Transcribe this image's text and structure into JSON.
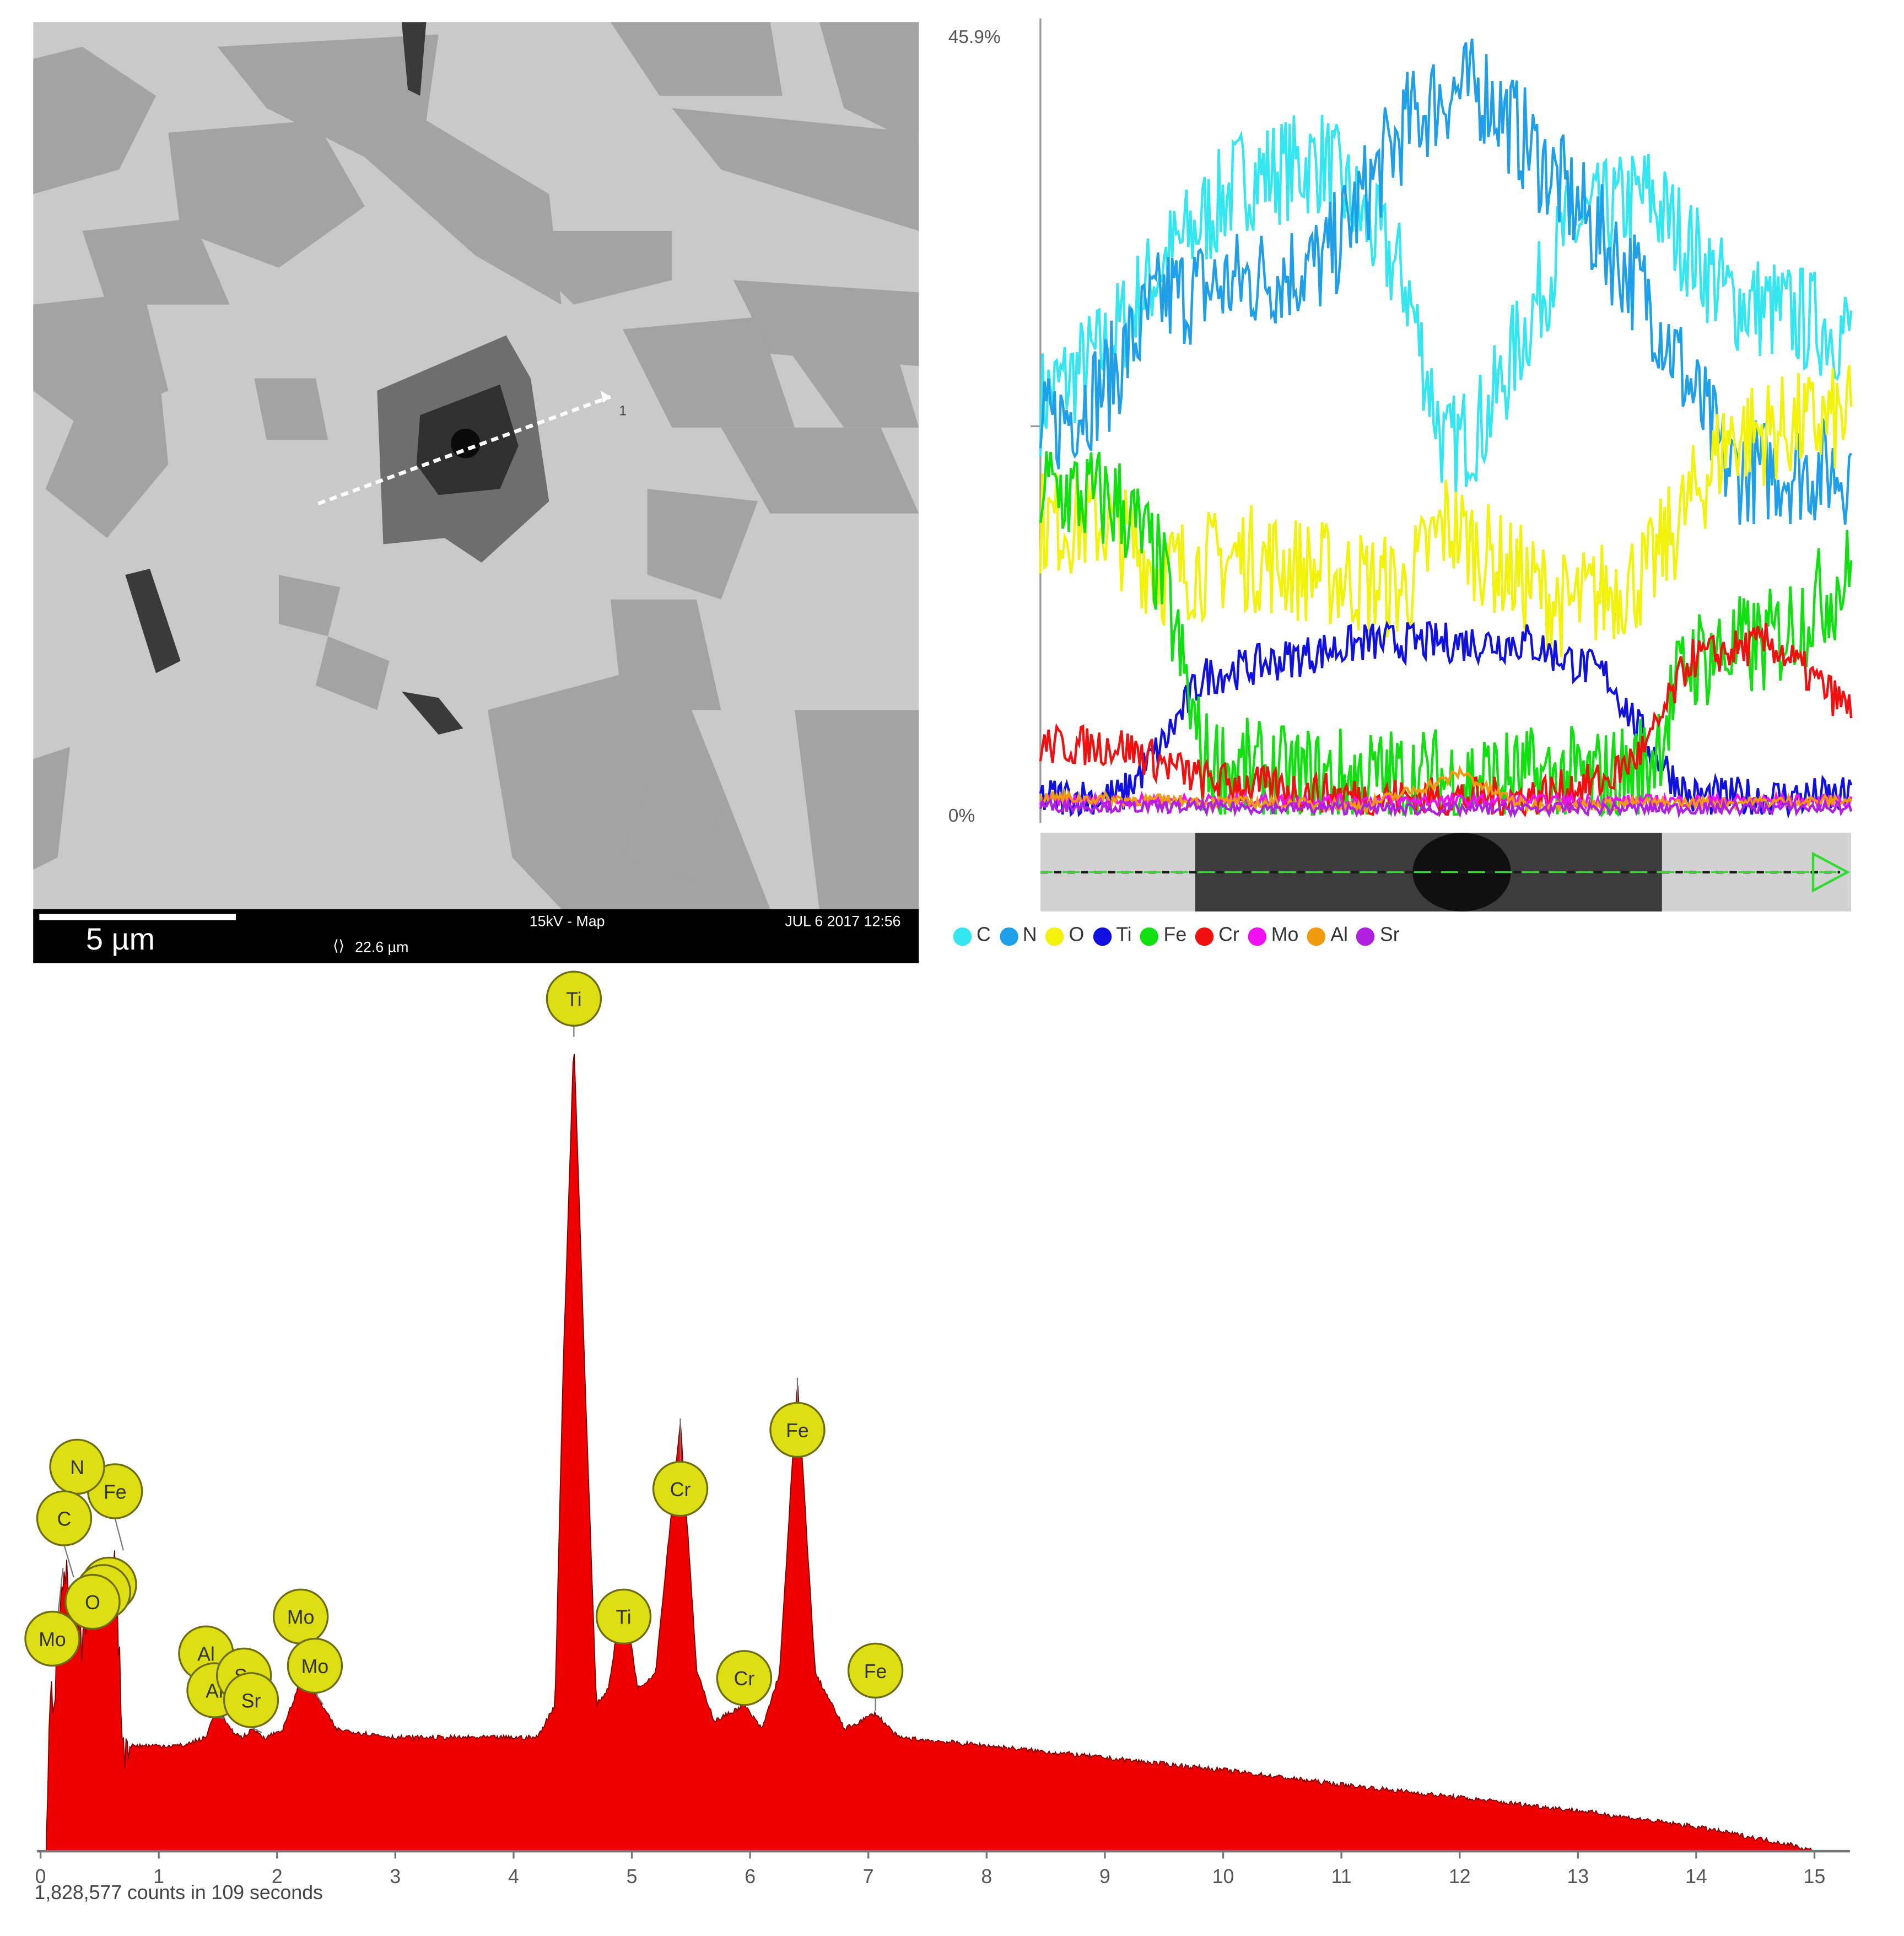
{
  "sem": {
    "scalebar_label": "5 µm",
    "voltage_mode": "15kV - Map",
    "timestamp": "JUL 6 2017 12:56",
    "field_width": "22.6 µm",
    "line_end_marker": "1"
  },
  "line_scan": {
    "y_max_label": "45.9%",
    "y_min_label": "0%",
    "legend": [
      {
        "name": "C",
        "color": "#33e6ef"
      },
      {
        "name": "N",
        "color": "#1e9fe8"
      },
      {
        "name": "O",
        "color": "#f2f20a"
      },
      {
        "name": "Ti",
        "color": "#1010e0"
      },
      {
        "name": "Fe",
        "color": "#10e010"
      },
      {
        "name": "Cr",
        "color": "#f01010"
      },
      {
        "name": "Mo",
        "color": "#f010f0"
      },
      {
        "name": "Al",
        "color": "#f09a10"
      },
      {
        "name": "Sr",
        "color": "#b020e0"
      }
    ]
  },
  "spectrum": {
    "counts_label": "1,828,577 counts in 109 seconds",
    "fill_color": "#ee0000",
    "peak_label_color": "#dede14"
  },
  "chart_data": [
    {
      "type": "line",
      "description_units": "concentration along line scan (%), x = normalized position 0–1",
      "ylim": [
        0,
        45.9
      ],
      "x_range": [
        0,
        1
      ],
      "series": [
        {
          "name": "C",
          "x": [
            0,
            0.08,
            0.15,
            0.25,
            0.35,
            0.45,
            0.5,
            0.55,
            0.65,
            0.75,
            0.85,
            1.0
          ],
          "values": [
            24,
            27,
            32,
            37,
            38,
            31,
            21,
            23,
            34,
            36,
            30,
            28
          ]
        },
        {
          "name": "N",
          "x": [
            0,
            0.08,
            0.15,
            0.25,
            0.35,
            0.45,
            0.5,
            0.55,
            0.65,
            0.75,
            0.85,
            1.0
          ],
          "values": [
            22,
            25,
            30,
            31,
            32,
            40,
            42,
            42,
            36,
            30,
            20,
            20
          ]
        },
        {
          "name": "O",
          "x": [
            0,
            0.08,
            0.15,
            0.25,
            0.35,
            0.45,
            0.5,
            0.55,
            0.65,
            0.75,
            0.85,
            1.0
          ],
          "values": [
            17,
            17,
            14,
            15,
            14,
            13,
            17,
            15,
            12,
            14,
            22,
            23
          ]
        },
        {
          "name": "Ti",
          "x": [
            0,
            0.1,
            0.15,
            0.2,
            0.3,
            0.4,
            0.5,
            0.6,
            0.7,
            0.75,
            0.8,
            1.0
          ],
          "values": [
            1,
            1,
            4,
            8,
            9,
            10,
            10,
            10,
            8,
            4,
            1,
            1
          ]
        },
        {
          "name": "Fe",
          "x": [
            0,
            0.1,
            0.15,
            0.2,
            0.3,
            0.4,
            0.5,
            0.6,
            0.7,
            0.75,
            0.8,
            0.9,
            1.0
          ],
          "values": [
            19,
            18,
            14,
            3,
            2,
            2,
            2,
            2,
            2,
            3,
            9,
            10,
            14
          ]
        },
        {
          "name": "Cr",
          "x": [
            0,
            0.1,
            0.15,
            0.2,
            0.3,
            0.4,
            0.5,
            0.6,
            0.7,
            0.75,
            0.8,
            0.9,
            1.0
          ],
          "values": [
            4,
            4,
            3,
            2,
            1.5,
            1,
            1,
            1,
            2,
            4,
            9,
            10,
            6
          ]
        },
        {
          "name": "Mo",
          "x": [
            0,
            0.5,
            1.0
          ],
          "values": [
            0.8,
            0.8,
            0.8
          ]
        },
        {
          "name": "Al",
          "x": [
            0,
            0.4,
            0.5,
            0.52,
            0.55,
            0.6,
            1.0
          ],
          "values": [
            1,
            0.5,
            2,
            2.5,
            1.5,
            0.5,
            0.8
          ]
        },
        {
          "name": "Sr",
          "x": [
            0,
            0.5,
            1.0
          ],
          "values": [
            0.5,
            0.3,
            0.4
          ]
        }
      ]
    },
    {
      "type": "area",
      "xlabel": "",
      "ylabel": "",
      "x_ticks": [
        0,
        1,
        2,
        3,
        4,
        5,
        6,
        7,
        8,
        9,
        10,
        11,
        12,
        13,
        14,
        15
      ],
      "xlim": [
        0,
        15.3
      ],
      "ylim": [
        0,
        1
      ],
      "spectrum_points": [
        [
          0.05,
          0.0
        ],
        [
          0.08,
          0.18
        ],
        [
          0.12,
          0.2
        ],
        [
          0.18,
          0.35
        ],
        [
          0.25,
          0.32
        ],
        [
          0.35,
          0.25
        ],
        [
          0.45,
          0.3
        ],
        [
          0.55,
          0.33
        ],
        [
          0.62,
          0.38
        ],
        [
          0.7,
          0.13
        ],
        [
          0.9,
          0.13
        ],
        [
          1.2,
          0.13
        ],
        [
          1.4,
          0.14
        ],
        [
          1.49,
          0.18
        ],
        [
          1.6,
          0.15
        ],
        [
          1.7,
          0.14
        ],
        [
          1.8,
          0.15
        ],
        [
          1.9,
          0.14
        ],
        [
          2.05,
          0.15
        ],
        [
          2.2,
          0.21
        ],
        [
          2.3,
          0.2
        ],
        [
          2.5,
          0.15
        ],
        [
          3.0,
          0.14
        ],
        [
          3.5,
          0.14
        ],
        [
          4.2,
          0.14
        ],
        [
          4.35,
          0.18
        ],
        [
          4.42,
          0.6
        ],
        [
          4.51,
          1.0
        ],
        [
          4.6,
          0.6
        ],
        [
          4.7,
          0.18
        ],
        [
          4.8,
          0.2
        ],
        [
          4.93,
          0.32
        ],
        [
          5.05,
          0.2
        ],
        [
          5.2,
          0.22
        ],
        [
          5.41,
          0.53
        ],
        [
          5.55,
          0.22
        ],
        [
          5.7,
          0.16
        ],
        [
          5.95,
          0.18
        ],
        [
          6.1,
          0.15
        ],
        [
          6.25,
          0.22
        ],
        [
          6.4,
          0.58
        ],
        [
          6.55,
          0.22
        ],
        [
          6.8,
          0.15
        ],
        [
          7.06,
          0.17
        ],
        [
          7.25,
          0.14
        ],
        [
          8,
          0.13
        ],
        [
          9,
          0.115
        ],
        [
          10,
          0.1
        ],
        [
          11,
          0.082
        ],
        [
          12,
          0.066
        ],
        [
          13,
          0.05
        ],
        [
          14,
          0.03
        ],
        [
          14.8,
          0.008
        ],
        [
          15.0,
          0.0
        ]
      ],
      "peaks": [
        {
          "element": "Ti",
          "energy": 4.51
        },
        {
          "element": "Ti",
          "energy": 4.93
        },
        {
          "element": "Cr",
          "energy": 5.41
        },
        {
          "element": "Cr",
          "energy": 5.95
        },
        {
          "element": "Fe",
          "energy": 6.4
        },
        {
          "element": "Fe",
          "energy": 7.06
        },
        {
          "element": "Fe",
          "energy": 0.7
        },
        {
          "element": "N",
          "energy": 0.39
        },
        {
          "element": "C",
          "energy": 0.28
        },
        {
          "element": "O",
          "energy": 0.52
        },
        {
          "element": "Mo",
          "energy": 0.19
        },
        {
          "element": "Mo",
          "energy": 2.29
        },
        {
          "element": "Mo",
          "energy": 2.39
        },
        {
          "element": "Al",
          "energy": 1.49
        },
        {
          "element": "Al",
          "energy": 1.56
        },
        {
          "element": "Sr",
          "energy": 1.81
        },
        {
          "element": "Sr",
          "energy": 1.87
        }
      ]
    }
  ]
}
